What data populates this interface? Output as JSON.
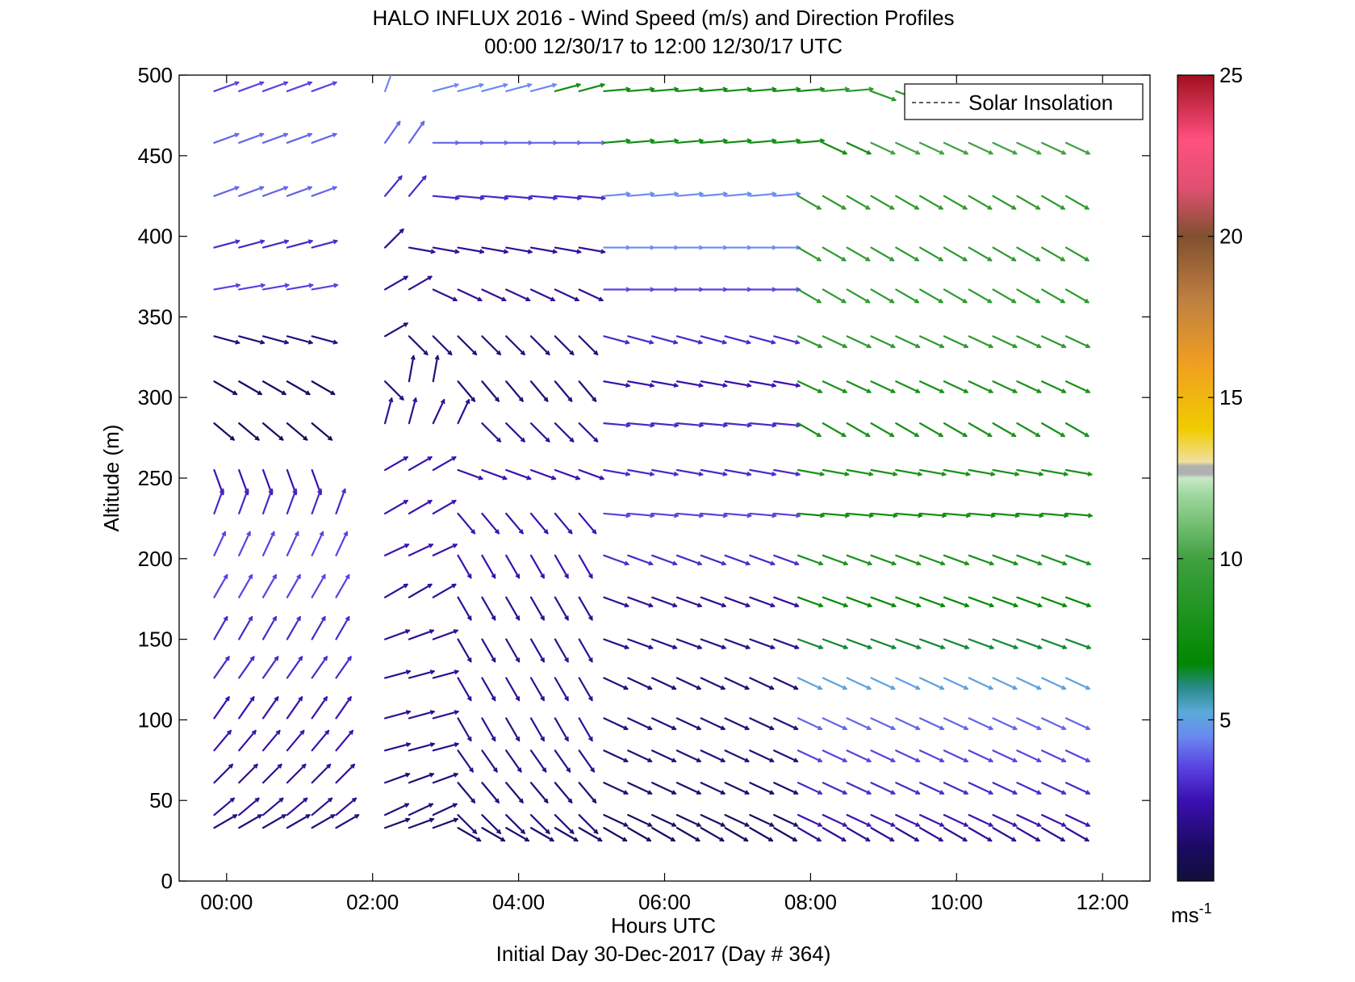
{
  "chart_data": {
    "type": "quiver",
    "title": "HALO INFLUX 2016 - Wind Speed (m/s) and Direction Profiles",
    "subtitle": "00:00 12/30/17 to 12:00 12/30/17  UTC",
    "xlabel": "Hours UTC",
    "xlabel2": "Initial Day 30-Dec-2017 (Day # 364)",
    "ylabel": "Altitude (m)",
    "xlim_hours": [
      -0.65,
      12.65
    ],
    "ylim": [
      0,
      500
    ],
    "x_ticks": [
      {
        "hour": 0,
        "label": "00:00"
      },
      {
        "hour": 2,
        "label": "02:00"
      },
      {
        "hour": 4,
        "label": "04:00"
      },
      {
        "hour": 6,
        "label": "06:00"
      },
      {
        "hour": 8,
        "label": "08:00"
      },
      {
        "hour": 10,
        "label": "10:00"
      },
      {
        "hour": 12,
        "label": "12:00"
      }
    ],
    "y_ticks": [
      "0",
      "50",
      "100",
      "150",
      "200",
      "250",
      "300",
      "350",
      "400",
      "450",
      "500"
    ],
    "legend": {
      "entry": "Solar Insolation",
      "placement": "top-right"
    },
    "colorbar": {
      "min": 0,
      "max": 25,
      "ticks": [
        "5",
        "10",
        "15",
        "20",
        "25"
      ],
      "unit": "ms",
      "unit_exp": "-1"
    },
    "time_hours": [
      -0.17,
      0.17,
      0.5,
      0.83,
      1.17,
      1.5,
      1.83,
      2.17,
      2.5,
      2.83,
      3.17,
      3.5,
      3.83,
      4.17,
      4.5,
      4.83,
      5.17,
      5.5,
      5.83,
      6.17,
      6.5,
      6.83,
      7.17,
      7.5,
      7.83,
      8.17,
      8.5,
      8.83,
      9.17,
      9.5,
      9.83,
      10.17,
      10.5,
      10.83,
      11.17,
      11.5
    ],
    "altitudes_m": [
      490,
      458,
      425,
      393,
      367,
      338,
      310,
      284,
      255,
      228,
      202,
      176,
      150,
      126,
      101,
      81,
      61,
      41,
      33
    ],
    "wind_direction_deg_by_altitude": {
      "490": {
        "segments": [
          [
            -0.17,
            1.17,
            250
          ],
          [
            2.0,
            2.2,
            200
          ],
          [
            2.7,
            4.83,
            255
          ],
          [
            4.83,
            8.5,
            265
          ],
          [
            8.5,
            12.0,
            290
          ]
        ]
      },
      "458": {
        "segments": [
          [
            -0.17,
            1.17,
            250
          ],
          [
            2.0,
            2.6,
            215
          ],
          [
            2.6,
            4.83,
            270
          ],
          [
            4.83,
            8.0,
            265
          ],
          [
            8.0,
            12.0,
            295
          ]
        ]
      },
      "425": {
        "segments": [
          [
            -0.17,
            1.17,
            250
          ],
          [
            2.0,
            2.8,
            220
          ],
          [
            2.8,
            4.83,
            275
          ],
          [
            4.83,
            7.8,
            265
          ],
          [
            7.8,
            12.0,
            300
          ]
        ]
      },
      "393": {
        "segments": [
          [
            -0.17,
            1.17,
            255
          ],
          [
            1.83,
            2.4,
            225
          ],
          [
            2.4,
            4.83,
            280
          ],
          [
            4.83,
            7.8,
            270
          ],
          [
            7.8,
            12.0,
            300
          ]
        ]
      },
      "367": {
        "segments": [
          [
            -0.17,
            1.5,
            260
          ],
          [
            1.83,
            2.8,
            240
          ],
          [
            2.8,
            4.83,
            295
          ],
          [
            4.83,
            7.5,
            270
          ],
          [
            7.5,
            12.0,
            300
          ]
        ]
      },
      "338": {
        "segments": [
          [
            -0.17,
            1.83,
            285
          ],
          [
            1.83,
            2.4,
            240
          ],
          [
            2.4,
            4.83,
            315
          ],
          [
            4.83,
            7.5,
            285
          ],
          [
            7.5,
            12.0,
            295
          ]
        ]
      },
      "310": {
        "segments": [
          [
            -0.17,
            1.5,
            300
          ],
          [
            1.83,
            2.4,
            315
          ],
          [
            2.4,
            3.0,
            190
          ],
          [
            3.0,
            4.83,
            320
          ],
          [
            4.83,
            7.5,
            280
          ],
          [
            7.5,
            12.0,
            295
          ]
        ]
      },
      "284": {
        "segments": [
          [
            -0.17,
            1.5,
            310
          ],
          [
            1.83,
            2.5,
            195
          ],
          [
            2.5,
            3.4,
            205
          ],
          [
            3.4,
            4.83,
            315
          ],
          [
            4.83,
            7.5,
            275
          ],
          [
            7.5,
            12.0,
            300
          ]
        ]
      },
      "255": {
        "segments": [
          [
            -0.17,
            1.5,
            340
          ],
          [
            1.83,
            3.0,
            240
          ],
          [
            3.0,
            4.83,
            290
          ],
          [
            4.83,
            12.0,
            280
          ]
        ]
      },
      "228": {
        "segments": [
          [
            -0.17,
            1.5,
            200
          ],
          [
            2.17,
            3.0,
            240
          ],
          [
            3.0,
            4.83,
            320
          ],
          [
            4.83,
            12.0,
            275
          ]
        ]
      },
      "202": {
        "segments": [
          [
            -0.17,
            1.5,
            205
          ],
          [
            1.83,
            3.0,
            245
          ],
          [
            3.0,
            4.83,
            330
          ],
          [
            4.83,
            12.0,
            290
          ]
        ]
      },
      "176": {
        "segments": [
          [
            -0.17,
            1.5,
            210
          ],
          [
            1.83,
            3.0,
            240
          ],
          [
            3.0,
            4.83,
            330
          ],
          [
            4.83,
            12.0,
            290
          ]
        ]
      },
      "150": {
        "segments": [
          [
            -0.17,
            1.5,
            210
          ],
          [
            1.83,
            3.0,
            250
          ],
          [
            3.0,
            4.83,
            330
          ],
          [
            4.83,
            12.0,
            290
          ]
        ]
      },
      "126": {
        "segments": [
          [
            -0.17,
            1.5,
            215
          ],
          [
            1.83,
            3.0,
            255
          ],
          [
            3.0,
            4.83,
            330
          ],
          [
            4.83,
            12.0,
            295
          ]
        ]
      },
      "101": {
        "segments": [
          [
            -0.17,
            1.5,
            215
          ],
          [
            1.83,
            3.0,
            255
          ],
          [
            3.0,
            4.83,
            330
          ],
          [
            4.83,
            12.0,
            295
          ]
        ]
      },
      "81": {
        "segments": [
          [
            -0.17,
            1.5,
            220
          ],
          [
            1.83,
            3.0,
            255
          ],
          [
            3.0,
            4.83,
            325
          ],
          [
            4.83,
            12.0,
            295
          ]
        ]
      },
      "61": {
        "segments": [
          [
            -0.17,
            1.5,
            225
          ],
          [
            1.83,
            3.0,
            250
          ],
          [
            3.0,
            4.83,
            320
          ],
          [
            4.83,
            12.0,
            295
          ]
        ]
      },
      "41": {
        "segments": [
          [
            -0.17,
            1.5,
            230
          ],
          [
            1.83,
            3.0,
            245
          ],
          [
            3.0,
            4.83,
            315
          ],
          [
            4.83,
            12.0,
            295
          ]
        ]
      },
      "33": {
        "segments": [
          [
            -0.17,
            1.5,
            240
          ],
          [
            1.83,
            3.0,
            250
          ],
          [
            3.0,
            4.83,
            300
          ],
          [
            4.83,
            12.0,
            300
          ]
        ]
      }
    },
    "wind_speed_ms_by_altitude": {
      "490": {
        "segments": [
          [
            -0.17,
            1.17,
            3.5
          ],
          [
            2.0,
            4.2,
            4.5
          ],
          [
            4.2,
            8.0,
            7.5
          ],
          [
            8.0,
            12.0,
            9.0
          ]
        ]
      },
      "458": {
        "segments": [
          [
            -0.17,
            1.17,
            4.0
          ],
          [
            2.0,
            4.83,
            4.0
          ],
          [
            4.83,
            8.5,
            7.5
          ],
          [
            8.5,
            12.0,
            10.0
          ]
        ]
      },
      "425": {
        "segments": [
          [
            -0.17,
            1.17,
            4.0
          ],
          [
            2.0,
            4.83,
            3.0
          ],
          [
            4.83,
            7.5,
            4.5
          ],
          [
            7.5,
            12.0,
            9.0
          ]
        ]
      },
      "393": {
        "segments": [
          [
            -0.17,
            1.17,
            3.0
          ],
          [
            1.83,
            4.83,
            2.0
          ],
          [
            4.83,
            7.5,
            4.5
          ],
          [
            7.5,
            12.0,
            9.0
          ]
        ]
      },
      "367": {
        "segments": [
          [
            -0.17,
            1.5,
            3.5
          ],
          [
            1.83,
            4.83,
            2.0
          ],
          [
            4.83,
            7.5,
            3.5
          ],
          [
            7.5,
            12.0,
            9.0
          ]
        ]
      },
      "338": {
        "segments": [
          [
            -0.17,
            1.83,
            1.5
          ],
          [
            1.83,
            4.83,
            1.5
          ],
          [
            4.83,
            7.5,
            3.0
          ],
          [
            7.5,
            12.0,
            9.0
          ]
        ]
      },
      "310": {
        "segments": [
          [
            -0.17,
            1.5,
            1.0
          ],
          [
            1.83,
            4.83,
            1.5
          ],
          [
            4.83,
            7.5,
            2.5
          ],
          [
            7.5,
            12.0,
            8.0
          ]
        ]
      },
      "284": {
        "segments": [
          [
            -0.17,
            1.5,
            1.0
          ],
          [
            1.83,
            4.83,
            2.0
          ],
          [
            4.83,
            7.5,
            3.0
          ],
          [
            7.5,
            12.0,
            8.0
          ]
        ]
      },
      "255": {
        "segments": [
          [
            -0.17,
            1.5,
            2.5
          ],
          [
            1.83,
            4.83,
            2.5
          ],
          [
            4.83,
            7.5,
            3.0
          ],
          [
            7.5,
            12.0,
            8.0
          ]
        ]
      },
      "228": {
        "segments": [
          [
            -0.17,
            1.5,
            3.0
          ],
          [
            2.17,
            4.83,
            2.5
          ],
          [
            4.83,
            7.5,
            3.5
          ],
          [
            7.5,
            12.0,
            7.5
          ]
        ]
      },
      "202": {
        "segments": [
          [
            -0.17,
            1.5,
            3.5
          ],
          [
            1.83,
            4.83,
            2.5
          ],
          [
            4.83,
            7.5,
            3.0
          ],
          [
            7.5,
            12.0,
            8.0
          ]
        ]
      },
      "176": {
        "segments": [
          [
            -0.17,
            1.5,
            3.5
          ],
          [
            1.83,
            4.83,
            2.0
          ],
          [
            4.83,
            7.5,
            2.0
          ],
          [
            7.5,
            12.0,
            7.0
          ]
        ]
      },
      "150": {
        "segments": [
          [
            -0.17,
            1.5,
            3.0
          ],
          [
            1.83,
            4.83,
            2.0
          ],
          [
            4.83,
            7.5,
            1.8
          ],
          [
            7.5,
            12.0,
            6.5
          ]
        ]
      },
      "126": {
        "segments": [
          [
            -0.17,
            1.5,
            3.0
          ],
          [
            1.83,
            4.83,
            2.0
          ],
          [
            4.83,
            7.5,
            1.5
          ],
          [
            7.5,
            12.0,
            5.0
          ]
        ]
      },
      "101": {
        "segments": [
          [
            -0.17,
            1.5,
            2.5
          ],
          [
            1.83,
            4.83,
            2.0
          ],
          [
            4.83,
            7.5,
            1.5
          ],
          [
            7.5,
            12.0,
            4.0
          ]
        ]
      },
      "81": {
        "segments": [
          [
            -0.17,
            1.5,
            2.5
          ],
          [
            1.83,
            4.83,
            1.8
          ],
          [
            4.83,
            7.5,
            1.5
          ],
          [
            7.5,
            12.0,
            3.5
          ]
        ]
      },
      "61": {
        "segments": [
          [
            -0.17,
            1.5,
            2.0
          ],
          [
            1.83,
            4.83,
            1.5
          ],
          [
            4.83,
            7.5,
            1.2
          ],
          [
            7.5,
            12.0,
            3.0
          ]
        ]
      },
      "41": {
        "segments": [
          [
            -0.17,
            1.5,
            2.0
          ],
          [
            1.83,
            4.83,
            1.5
          ],
          [
            4.83,
            7.5,
            1.0
          ],
          [
            7.5,
            12.0,
            2.5
          ]
        ]
      },
      "33": {
        "segments": [
          [
            -0.17,
            1.5,
            1.5
          ],
          [
            1.83,
            4.83,
            1.2
          ],
          [
            4.83,
            7.5,
            1.0
          ],
          [
            7.5,
            12.0,
            2.0
          ]
        ]
      }
    },
    "missing_data": [
      {
        "hours": [
          1.3,
          1.9
        ],
        "alt_min": 340,
        "alt_max": 500
      },
      {
        "hours": [
          1.4,
          2.0
        ],
        "alt_min": 240,
        "alt_max": 340
      },
      {
        "hours": [
          1.55,
          1.95
        ],
        "alt_min": 0,
        "alt_max": 240
      },
      {
        "hours": [
          1.95,
          2.1
        ],
        "alt_min": 215,
        "alt_max": 240
      }
    ]
  }
}
